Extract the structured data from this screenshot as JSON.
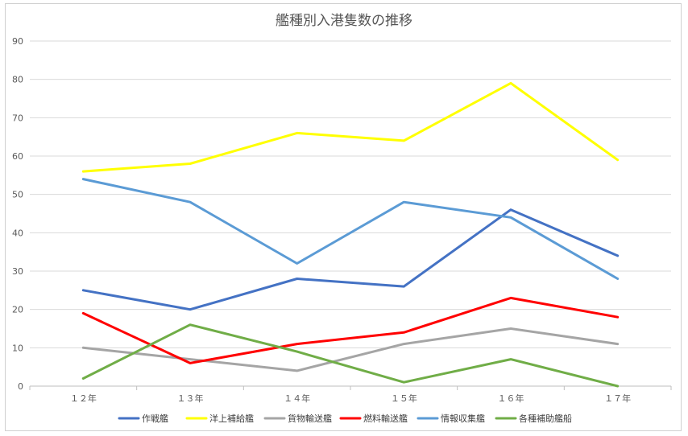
{
  "chart_data": {
    "type": "line",
    "title": "艦種別入港隻数の推移",
    "xlabel": "",
    "ylabel": "",
    "categories": [
      "１２年",
      "１３年",
      "１４年",
      "１５年",
      "１６年",
      "１７年"
    ],
    "ylim": [
      0,
      90
    ],
    "yticks": [
      "0",
      "10",
      "20",
      "30",
      "40",
      "50",
      "60",
      "70",
      "80",
      "90"
    ],
    "grid": true,
    "legend_position": "bottom",
    "series": [
      {
        "name": "作戦艦",
        "color": "#4472c4",
        "values": [
          25,
          20,
          28,
          26,
          46,
          34
        ]
      },
      {
        "name": "洋上補給艦",
        "color": "#ffff00",
        "values": [
          56,
          58,
          66,
          64,
          79,
          59
        ]
      },
      {
        "name": "貨物輸送艦",
        "color": "#a5a5a5",
        "values": [
          10,
          7,
          4,
          11,
          15,
          11
        ]
      },
      {
        "name": "燃料輸送艦",
        "color": "#ff0000",
        "values": [
          19,
          6,
          11,
          14,
          23,
          18
        ]
      },
      {
        "name": "情報収集艦",
        "color": "#5b9bd5",
        "values": [
          54,
          48,
          32,
          48,
          44,
          28
        ]
      },
      {
        "name": "各種補助艦船",
        "color": "#70ad47",
        "values": [
          2,
          16,
          9,
          1,
          7,
          0
        ]
      }
    ]
  }
}
